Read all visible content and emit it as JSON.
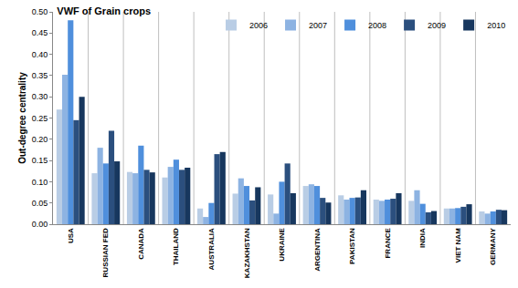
{
  "chart_data": {
    "type": "bar",
    "title": "VWF of Grain crops",
    "y_label": "Out-degree centrality",
    "categories": [
      "USA",
      "RUSSIAN FED",
      "CANADA",
      "THAILAND",
      "AUSTRALIA",
      "KAZAKHSTAN",
      "UKRAINE",
      "ARGENTINA",
      "PAKISTAN",
      "FRANCE",
      "INDIA",
      "VIET NAM",
      "GERMANY"
    ],
    "series": [
      {
        "name": "2006",
        "color": "#b9cde5",
        "values": [
          0.27,
          0.12,
          0.123,
          0.11,
          0.037,
          0.072,
          0.07,
          0.09,
          0.068,
          0.058,
          0.055,
          0.037,
          0.03
        ]
      },
      {
        "name": "2007",
        "color": "#8db3e2",
        "values": [
          0.352,
          0.18,
          0.12,
          0.135,
          0.017,
          0.108,
          0.025,
          0.094,
          0.058,
          0.055,
          0.08,
          0.037,
          0.025
        ]
      },
      {
        "name": "2008",
        "color": "#4f8fdc",
        "values": [
          0.48,
          0.143,
          0.185,
          0.152,
          0.05,
          0.09,
          0.1,
          0.09,
          0.062,
          0.058,
          0.048,
          0.038,
          0.03
        ]
      },
      {
        "name": "2009",
        "color": "#2b4f7e",
        "values": [
          0.245,
          0.22,
          0.128,
          0.128,
          0.165,
          0.056,
          0.143,
          0.062,
          0.063,
          0.06,
          0.028,
          0.041,
          0.034
        ]
      },
      {
        "name": "2010",
        "color": "#17375e",
        "values": [
          0.3,
          0.148,
          0.122,
          0.133,
          0.17,
          0.087,
          0.073,
          0.051,
          0.08,
          0.073,
          0.031,
          0.047,
          0.033
        ]
      }
    ],
    "ylim": [
      0,
      0.5
    ],
    "yticks": [
      {
        "value": 0,
        "label": "0.00"
      },
      {
        "value": 0.05,
        "label": "0.05"
      },
      {
        "value": 0.1,
        "label": "0.10"
      },
      {
        "value": 0.15,
        "label": "0.15"
      },
      {
        "value": 0.2,
        "label": "0.20"
      },
      {
        "value": 0.25,
        "label": "0.25"
      },
      {
        "value": 0.3,
        "label": "0.30"
      },
      {
        "value": 0.35,
        "label": "0.35"
      },
      {
        "value": 0.4,
        "label": "0.40"
      },
      {
        "value": 0.45,
        "label": "0.45"
      },
      {
        "value": 0.5,
        "label": "0.50"
      }
    ],
    "grid": false,
    "legend": "top right"
  }
}
